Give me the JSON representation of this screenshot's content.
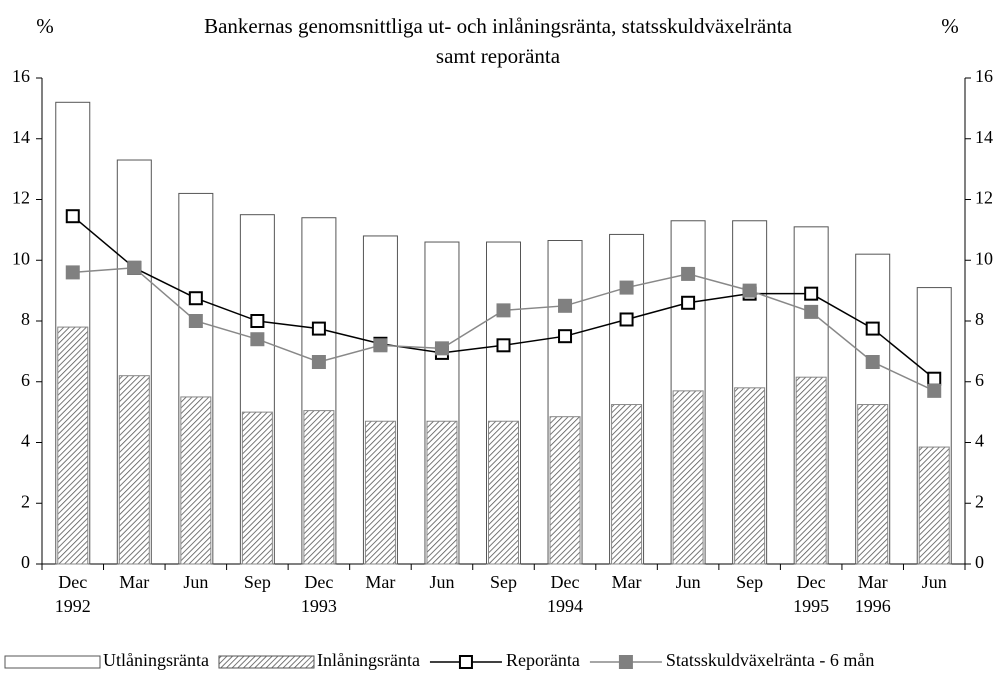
{
  "chart_data": {
    "type": "bar",
    "title": [
      "Bankernas genomsnittliga ut- och inlåningsränta, statsskuldväxelränta",
      "samt reporänta"
    ],
    "ylabel": "%",
    "y2label": "%",
    "categories": [
      "Dec 1992",
      "Mar",
      "Jun",
      "Sep",
      "Dec 1993",
      "Mar",
      "Jun",
      "Sep",
      "Dec 1994",
      "Mar",
      "Jun",
      "Sep",
      "Dec 1995",
      "Mar 1996",
      "Jun"
    ],
    "series": [
      {
        "name": "Utlåningsränta",
        "type": "bar",
        "color": "#ffffff",
        "values": [
          15.2,
          13.3,
          12.2,
          11.5,
          11.4,
          10.8,
          10.6,
          10.6,
          10.65,
          10.85,
          11.3,
          11.3,
          11.1,
          10.2,
          9.1
        ]
      },
      {
        "name": "Inlåningsränta",
        "type": "bar",
        "color": "hatch",
        "values": [
          7.8,
          6.2,
          5.5,
          5.0,
          5.05,
          4.7,
          4.7,
          4.7,
          4.85,
          5.25,
          5.7,
          5.8,
          6.15,
          5.25,
          3.85
        ]
      },
      {
        "name": "Reporänta",
        "type": "line",
        "color": "#000000",
        "marker_fill": "#ffffff",
        "values": [
          11.45,
          9.75,
          8.75,
          8.0,
          7.75,
          7.25,
          6.95,
          7.2,
          7.5,
          8.05,
          8.6,
          8.9,
          8.9,
          7.75,
          6.1
        ]
      },
      {
        "name": "Statsskuldväxelränta - 6 mån",
        "type": "line",
        "color": "#888888",
        "marker_fill": "#808080",
        "values": [
          9.6,
          9.75,
          8.0,
          7.4,
          6.65,
          7.2,
          7.1,
          8.35,
          8.5,
          9.1,
          9.55,
          9.0,
          8.3,
          6.65,
          5.7
        ]
      }
    ],
    "ylim": [
      0,
      16
    ],
    "yticks": [
      0,
      2,
      4,
      6,
      8,
      10,
      12,
      14,
      16
    ],
    "y2lim": [
      0,
      16
    ],
    "y2ticks": [
      0,
      2,
      4,
      6,
      8,
      10,
      12,
      14,
      16
    ],
    "grid": false,
    "legend": "bottom"
  }
}
